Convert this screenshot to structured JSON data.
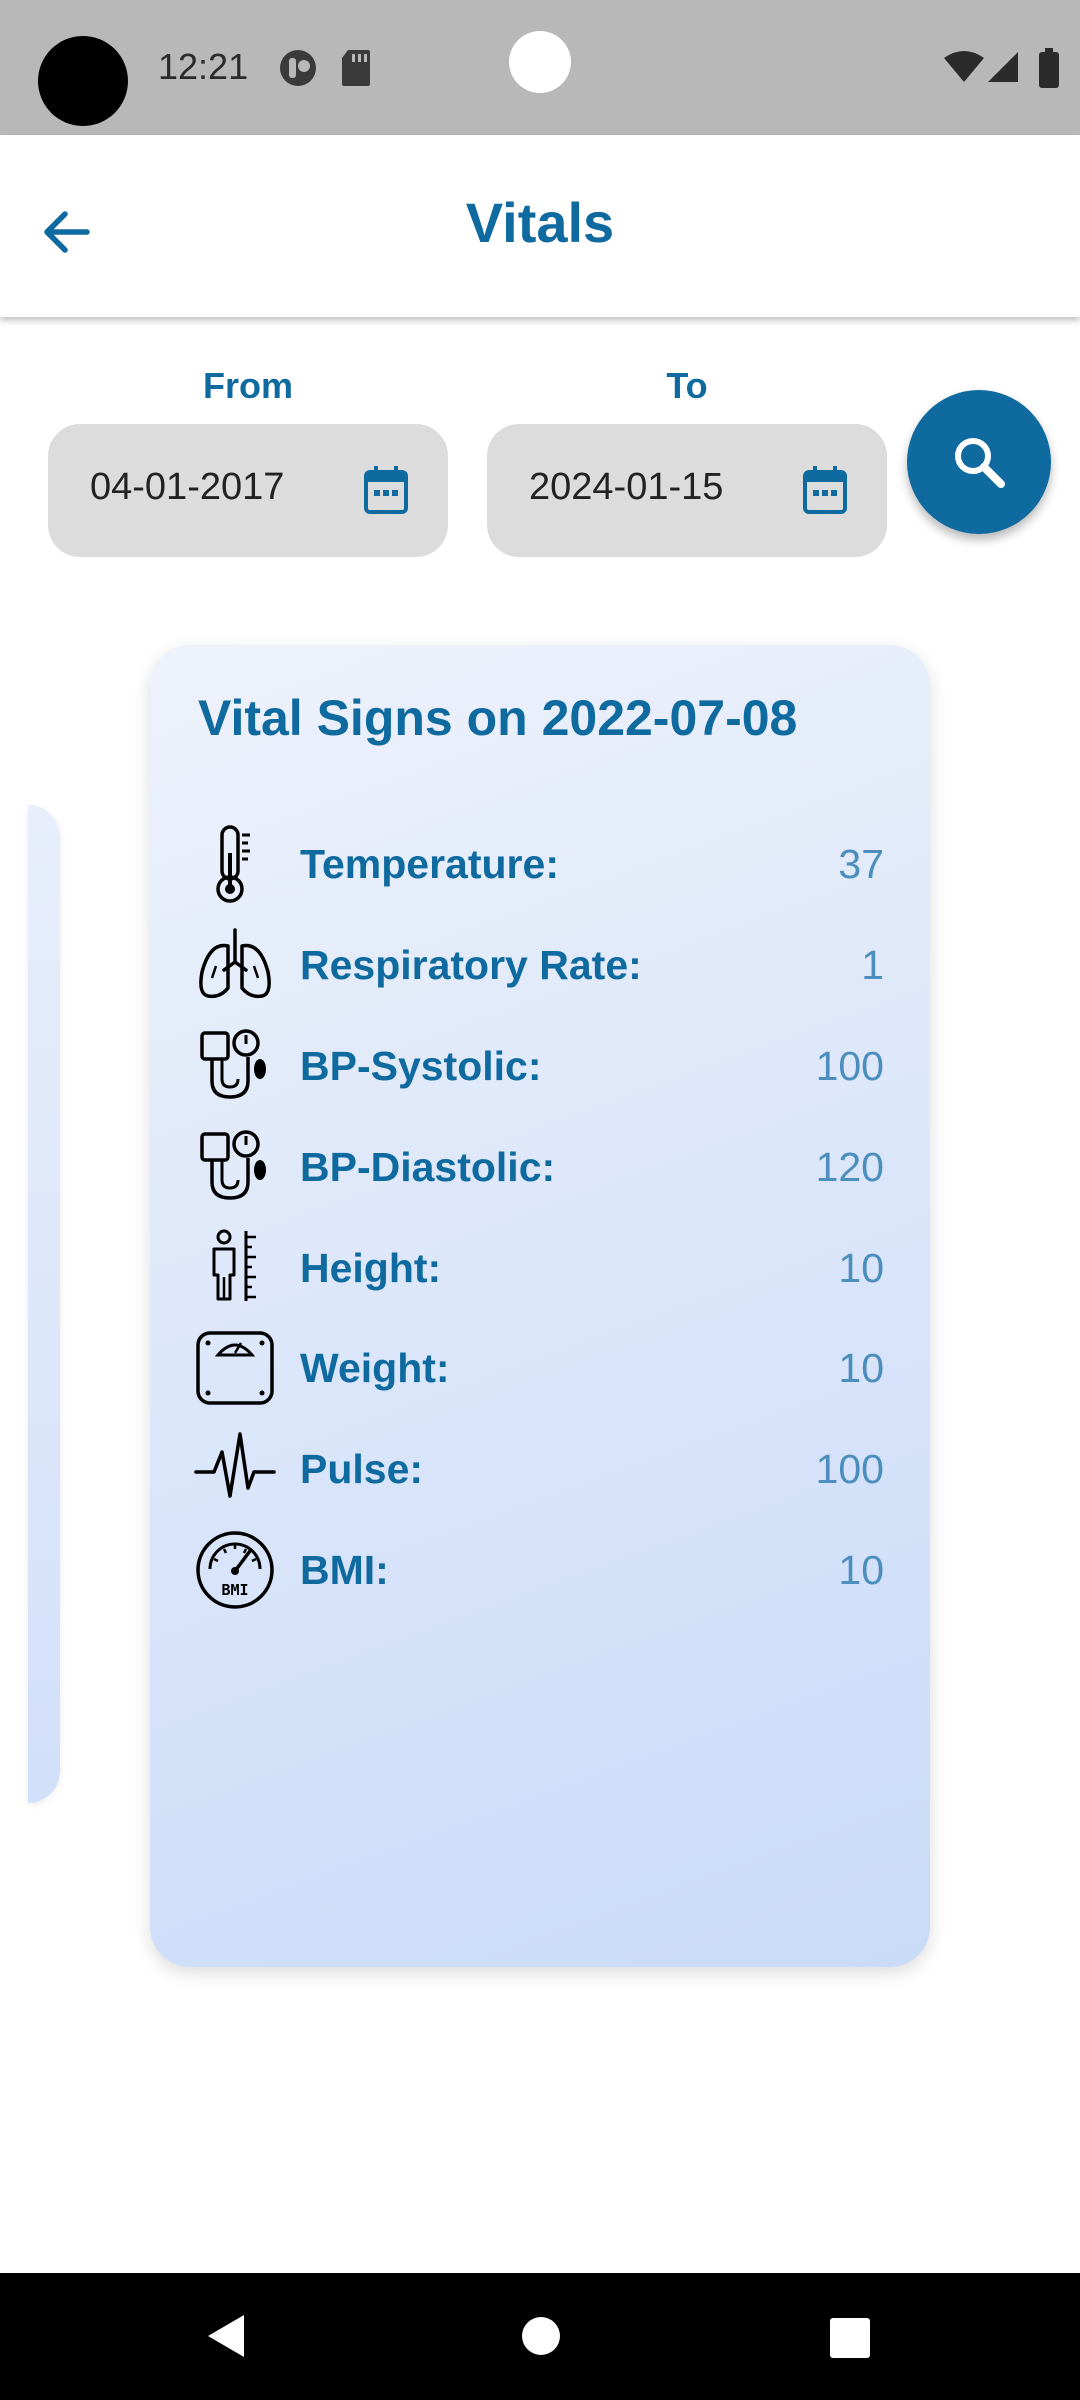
{
  "status_bar": {
    "time": "12:21",
    "icons": [
      "notification-icon",
      "sd-card-icon",
      "wifi-icon",
      "signal-icon",
      "battery-icon"
    ]
  },
  "app_bar": {
    "title": "Vitals",
    "back_icon": "arrow-left-icon"
  },
  "filters": {
    "from_label": "From",
    "from_value": "04-01-2017",
    "to_label": "To",
    "to_value": "2024-01-15",
    "calendar_icon": "calendar-icon",
    "search_icon": "search-icon"
  },
  "vitals_card": {
    "title": "Vital Signs on 2022-07-08",
    "rows": [
      {
        "icon": "thermometer-icon",
        "label": "Temperature:",
        "value": "37"
      },
      {
        "icon": "lungs-icon",
        "label": "Respiratory Rate:",
        "value": "1"
      },
      {
        "icon": "blood-pressure-icon",
        "label": "BP-Systolic:",
        "value": "100"
      },
      {
        "icon": "blood-pressure-icon",
        "label": "BP-Diastolic:",
        "value": "120"
      },
      {
        "icon": "height-icon",
        "label": "Height:",
        "value": "10"
      },
      {
        "icon": "weight-scale-icon",
        "label": "Weight:",
        "value": "10"
      },
      {
        "icon": "pulse-icon",
        "label": "Pulse:",
        "value": "100"
      },
      {
        "icon": "bmi-gauge-icon",
        "label": "BMI:",
        "value": "10"
      }
    ]
  },
  "colors": {
    "primary": "#0f6aa0",
    "value_text": "#4c8fbe",
    "field_bg": "#dcdcdc",
    "status_bar_bg": "#b8b8b8"
  },
  "nav_bar": {
    "icons": [
      "nav-back-icon",
      "nav-home-icon",
      "nav-recents-icon"
    ]
  }
}
